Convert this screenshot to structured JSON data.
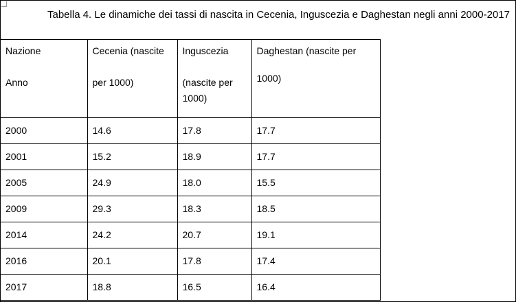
{
  "caption": "Tabella 4. Le dinamiche dei tassi di nascita in Cecenia, Inguscezia e Daghestan negli anni 2000-2017",
  "table": {
    "header": {
      "col1_line1": "Nazione",
      "col1_line2": "Anno",
      "col2_line1": "Cecenia (nascite",
      "col2_line2": "per 1000)",
      "col3_line1": "Inguscezia",
      "col3_line2": "(nascite  per",
      "col3_line3": "1000)",
      "col4_line1": "Daghestan (nascite per",
      "col4_line2": "1000)"
    },
    "rows": [
      {
        "year": "2000",
        "cecenia": "14.6",
        "inguscezia": "17.8",
        "daghestan": "17.7"
      },
      {
        "year": "2001",
        "cecenia": "15.2",
        "inguscezia": "18.9",
        "daghestan": "17.7"
      },
      {
        "year": "2005",
        "cecenia": "24.9",
        "inguscezia": "18.0",
        "daghestan": "15.5"
      },
      {
        "year": "2009",
        "cecenia": "29.3",
        "inguscezia": "18.3",
        "daghestan": "18.5"
      },
      {
        "year": "2014",
        "cecenia": "24.2",
        "inguscezia": "20.7",
        "daghestan": "19.1"
      },
      {
        "year": "2016",
        "cecenia": "20.1",
        "inguscezia": "17.8",
        "daghestan": "17.4"
      },
      {
        "year": "2017",
        "cecenia": "18.8",
        "inguscezia": "16.5",
        "daghestan": "16.4"
      }
    ]
  }
}
